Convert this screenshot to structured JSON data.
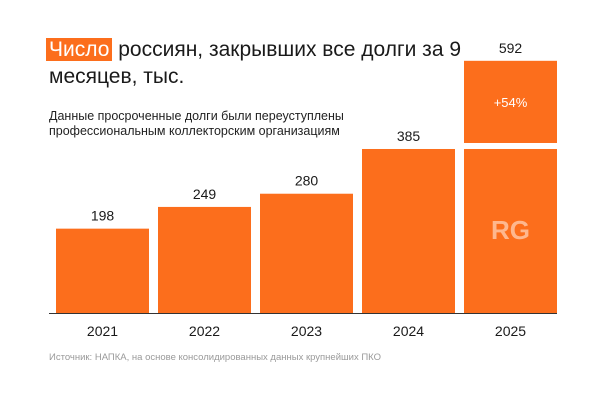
{
  "title": {
    "highlight": "Число",
    "rest": " россиян, закрывших все долги за 9 месяцев, тыс."
  },
  "subtitle": "Данные просроченные долги были переуступлены профессиональным коллекторским организациям",
  "source": "Источник: НАПКА, на основе консолидированных данных крупнейших ПКО",
  "watermark": "RG",
  "colors": {
    "bar": "#fc6e1c",
    "highlight": "#fc6e1c",
    "axis": "#333333",
    "watermark": "#d4d4d4"
  },
  "chart_data": {
    "type": "bar",
    "categories": [
      "2021",
      "2022",
      "2023",
      "2024",
      "2025"
    ],
    "values": [
      198,
      249,
      280,
      385,
      592
    ],
    "annotations": [
      {
        "category": "2025",
        "text": "+54%"
      }
    ],
    "ylim": [
      0,
      600
    ],
    "grid": false,
    "legend": "none"
  }
}
